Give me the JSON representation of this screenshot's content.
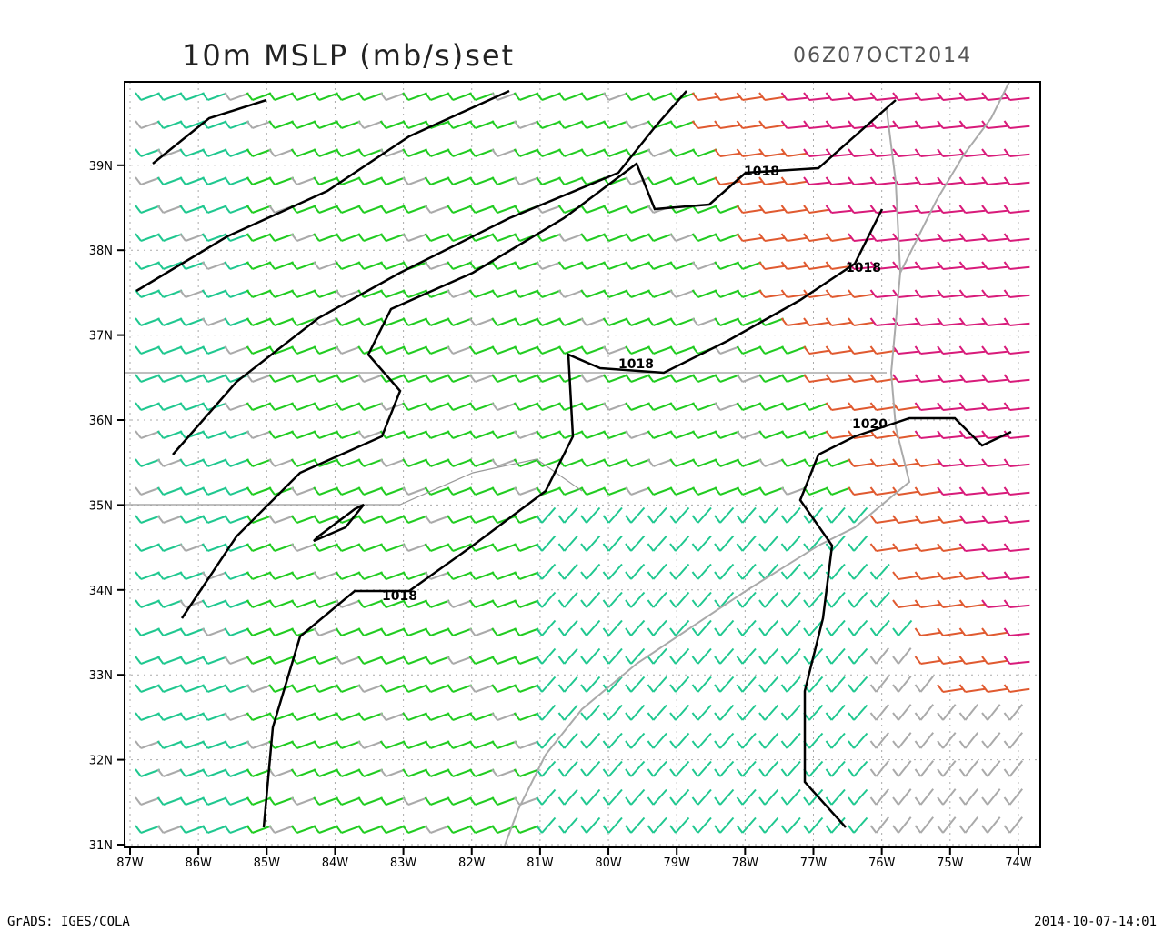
{
  "header": {
    "title": "10m MSLP (mb/s)set",
    "time": "06Z07OCT2014"
  },
  "lon_ticks": [
    "87W",
    "86W",
    "85W",
    "84W",
    "83W",
    "82W",
    "81W",
    "80W",
    "79W",
    "78W",
    "77W",
    "76W",
    "75W",
    "74W"
  ],
  "lat_ticks": [
    "31N",
    "32N",
    "33N",
    "34N",
    "35N",
    "36N",
    "37N",
    "38N",
    "39N"
  ],
  "contour_labels": [
    "1018",
    "1018",
    "1018",
    "1018",
    "1020"
  ],
  "footer": {
    "left": "GrADS: IGES/COLA",
    "right": "2014-10-07-14:01"
  }
}
